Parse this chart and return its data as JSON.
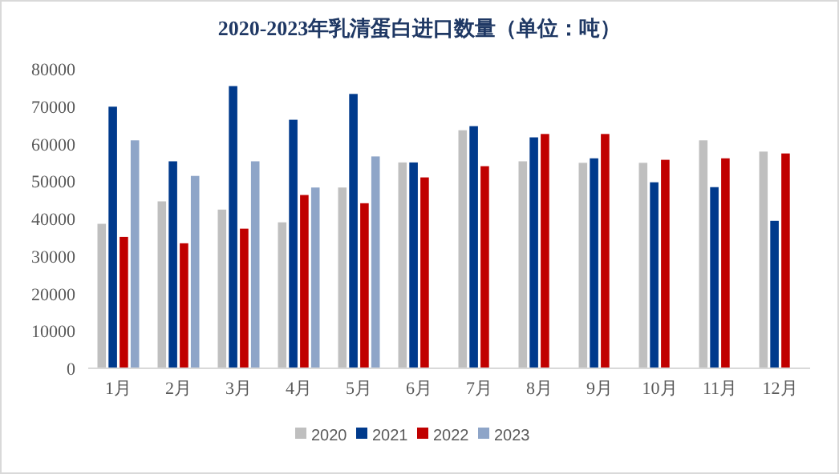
{
  "chart_data": {
    "type": "bar",
    "title": "2020-2023年乳清蛋白进口数量（单位：吨）",
    "categories": [
      "1月",
      "2月",
      "3月",
      "4月",
      "5月",
      "6月",
      "7月",
      "8月",
      "9月",
      "10月",
      "11月",
      "12月"
    ],
    "series": [
      {
        "name": "2020",
        "color": "#bfbfbf",
        "values": [
          38600,
          44600,
          42400,
          39000,
          48300,
          55000,
          63600,
          55300,
          54900,
          54900,
          60900,
          57900
        ]
      },
      {
        "name": "2021",
        "color": "#003a8c",
        "values": [
          69900,
          55300,
          75400,
          66400,
          73300,
          55000,
          64700,
          61700,
          56100,
          49700,
          48400,
          39400
        ]
      },
      {
        "name": "2022",
        "color": "#c00000",
        "values": [
          35100,
          33400,
          37300,
          46300,
          44100,
          51000,
          54000,
          62600,
          62600,
          55700,
          56100,
          57400
        ]
      },
      {
        "name": "2023",
        "color": "#8ea5c8",
        "values": [
          60900,
          51400,
          55300,
          48300,
          56600,
          null,
          null,
          null,
          null,
          null,
          null,
          null
        ]
      }
    ],
    "ylim": [
      0,
      80000
    ],
    "yticks": [
      0,
      10000,
      20000,
      30000,
      40000,
      50000,
      60000,
      70000,
      80000
    ],
    "legend": "bottom"
  }
}
